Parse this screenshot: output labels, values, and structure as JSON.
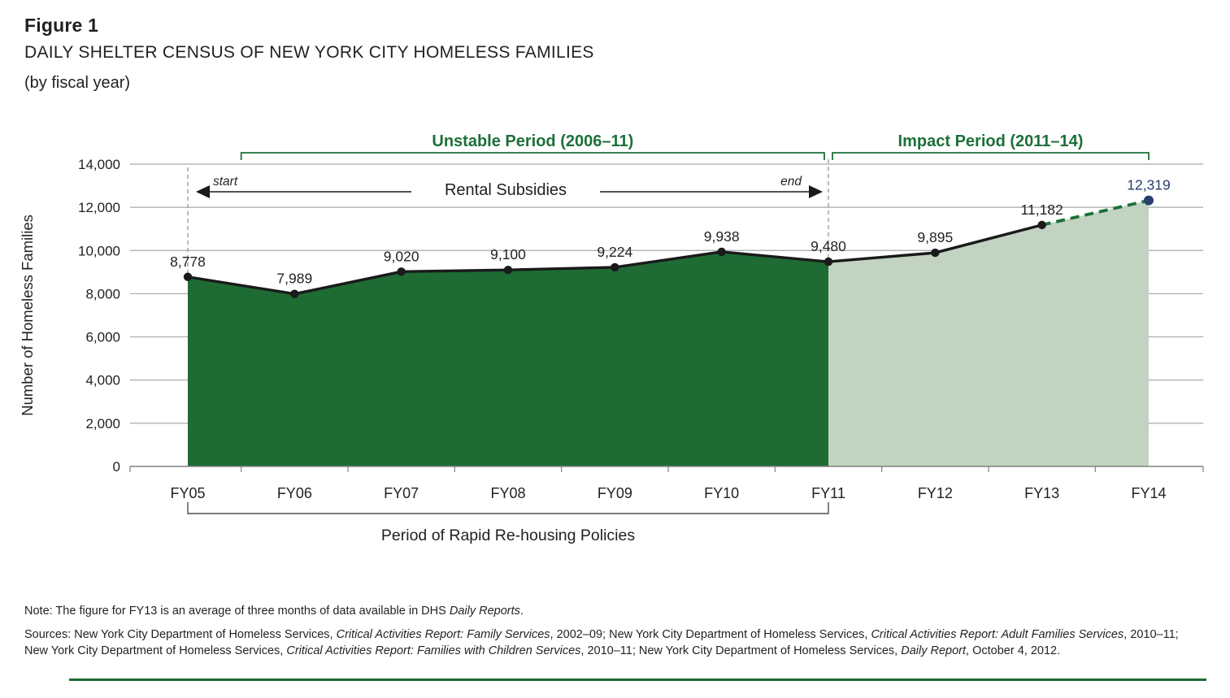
{
  "figure": {
    "label": "Figure 1",
    "title": "DAILY SHELTER CENSUS OF NEW YORK CITY HOMELESS FAMILIES",
    "subtitle": "(by fiscal year)"
  },
  "chart_data": {
    "type": "area",
    "title": "Daily Shelter Census of New York City Homeless Families (by fiscal year)",
    "categories": [
      "FY05",
      "FY06",
      "FY07",
      "FY08",
      "FY09",
      "FY10",
      "FY11",
      "FY12",
      "FY13",
      "FY14"
    ],
    "values": [
      8778,
      7989,
      9020,
      9100,
      9224,
      9938,
      9480,
      9895,
      11182,
      12319
    ],
    "value_labels": [
      "8,778",
      "7,989",
      "9,020",
      "9,100",
      "9,224",
      "9,938",
      "9,480",
      "9,895",
      "11,182",
      "12,319"
    ],
    "xlabel": "",
    "ylabel": "Number of Homeless Families",
    "ylim": [
      0,
      14000
    ],
    "grid": true,
    "yticks": [
      {
        "value": 0,
        "label": "0"
      },
      {
        "value": 2000,
        "label": "2,000"
      },
      {
        "value": 4000,
        "label": "4,000"
      },
      {
        "value": 6000,
        "label": "6,000"
      },
      {
        "value": 8000,
        "label": "8,000"
      },
      {
        "value": 10000,
        "label": "10,000"
      },
      {
        "value": 12000,
        "label": "12,000"
      },
      {
        "value": 14000,
        "label": "14,000"
      }
    ],
    "segments": [
      {
        "name": "unstable",
        "from": "FY05",
        "to": "FY11",
        "fill_key": "fill_dark"
      },
      {
        "name": "impact",
        "from": "FY11",
        "to": "FY14",
        "fill_key": "fill_light"
      }
    ],
    "solid_line": {
      "from": "FY05",
      "to": "FY13"
    },
    "dashed_segment": {
      "from": "FY13",
      "to": "FY14"
    },
    "guides": [
      "FY05",
      "FY11"
    ],
    "annotations": {
      "unstable_period": "Unstable Period (2006–11)",
      "impact_period": "Impact Period (2011–14)",
      "rental_subsidies": "Rental Subsidies",
      "start_label": "start",
      "end_label": "end",
      "bottom_bracket": "Period of Rapid Re-housing Policies"
    },
    "colors": {
      "text": "#231f20",
      "accent_green": "#1d7039",
      "fill_dark": "#1e6b34",
      "fill_light": "#c2d3c1",
      "endpoint_navy": "#27406e",
      "grid": "#a7a9ac",
      "axis": "#808285",
      "guide": "#939598",
      "line": "#1a1a1a",
      "bracket_gray": "#4d4d4f",
      "rule_green": "#1e6b34"
    }
  },
  "note": [
    {
      "t": "Note: The figure for FY13 is an average of three months of data available in DHS ",
      "i": false
    },
    {
      "t": "Daily Reports",
      "i": true
    },
    {
      "t": ".",
      "i": false
    }
  ],
  "sources": {
    "line1": [
      {
        "t": "Sources: New York City Department of Homeless Services, ",
        "i": false
      },
      {
        "t": "Critical Activities Report: Family Services",
        "i": true
      },
      {
        "t": ", 2002–09; New York City Department of Homeless Services, ",
        "i": false
      },
      {
        "t": "Critical Activities Report: Adult Families Services",
        "i": true
      },
      {
        "t": ", 2010–11;",
        "i": false
      }
    ],
    "line2": [
      {
        "t": "New York City Department of Homeless Services, ",
        "i": false
      },
      {
        "t": "Critical Activities Report: Families with Children Services",
        "i": true
      },
      {
        "t": ", 2010–11; New York City Department of Homeless Services, ",
        "i": false
      },
      {
        "t": "Daily Report",
        "i": true
      },
      {
        "t": ", October 4, 2012.",
        "i": false
      }
    ]
  }
}
